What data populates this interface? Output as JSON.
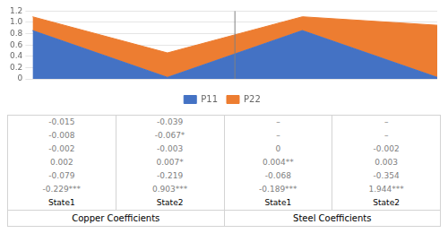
{
  "chart_data": {
    "type": "area",
    "categories": [
      null,
      null,
      null,
      null
    ],
    "series": [
      {
        "name": "P11",
        "color": "#4472C4",
        "values": [
          0.856,
          0.027,
          0.856,
          0.027
        ]
      },
      {
        "name": "P22",
        "color": "#ED7D31",
        "values": [
          1.1,
          0.46,
          1.1,
          0.95
        ]
      }
    ],
    "ylim": [
      0,
      1.2
    ],
    "yticks": [
      0,
      0.2,
      0.4,
      0.6,
      0.8,
      {
        "value": 1,
        "label": "1.0"
      },
      1.2
    ],
    "grid": true,
    "legend": "bottom",
    "tick_labels": "y",
    "table": {
      "rows": [
        [
          "-0.015",
          "-0.039",
          "–",
          "–"
        ],
        [
          "-0.008",
          "-0.067*",
          "–",
          "–"
        ],
        [
          "-0.002",
          "-0.003",
          "0",
          "-0.002"
        ],
        [
          "0.002",
          "0.007*",
          "0.004**",
          "0.003"
        ],
        [
          "-0.079",
          "-0.219",
          "-0.068",
          "-0.354"
        ],
        [
          "-0.229***",
          "0.903***",
          "-0.189***",
          "1.944***"
        ],
        [
          "State1",
          "State2",
          "State1",
          "State2"
        ]
      ],
      "group_labels": [
        "Copper Coefficients",
        "Steel Coefficients"
      ]
    }
  }
}
